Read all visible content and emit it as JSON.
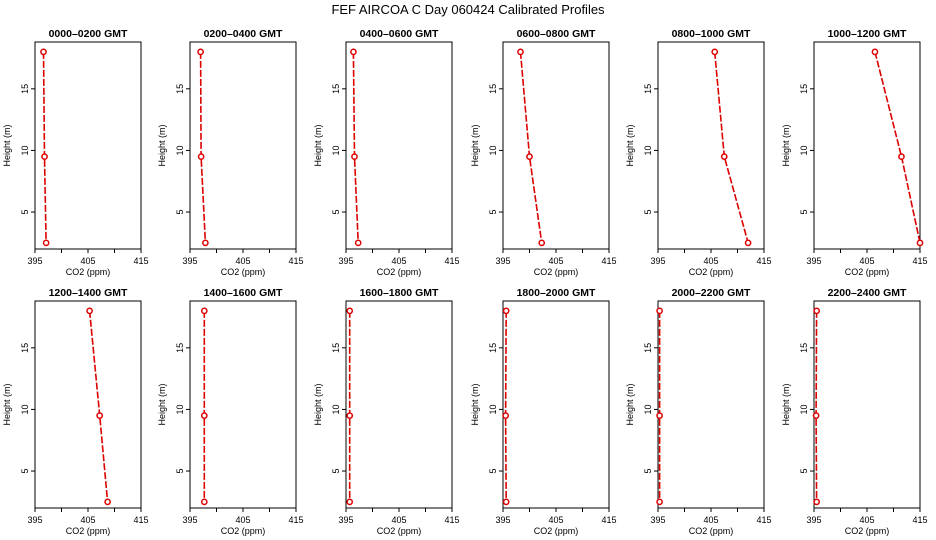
{
  "figure": {
    "title": "FEF AIRCOA C  Day 060424  Calibrated Profiles",
    "series_color": "#dd0000"
  },
  "chart_data": [
    {
      "type": "line",
      "title": "0000–0200 GMT",
      "xlabel": "CO2 (ppm)",
      "ylabel": "Height (m)",
      "xlim": [
        395,
        415
      ],
      "ylim": [
        2,
        18.8
      ],
      "xticks": [
        395,
        400,
        405,
        410,
        415
      ],
      "xtick_labels": [
        "395",
        "",
        "405",
        "",
        "415"
      ],
      "yticks": [
        5,
        10,
        15
      ],
      "x": [
        396.6,
        396.8,
        397.1
      ],
      "y": [
        18.0,
        9.5,
        2.5
      ]
    },
    {
      "type": "line",
      "title": "0200–0400 GMT",
      "xlabel": "CO2 (ppm)",
      "ylabel": "Height (m)",
      "xlim": [
        395,
        415
      ],
      "ylim": [
        2,
        18.8
      ],
      "xticks": [
        395,
        400,
        405,
        410,
        415
      ],
      "xtick_labels": [
        "395",
        "",
        "405",
        "",
        "415"
      ],
      "yticks": [
        5,
        10,
        15
      ],
      "x": [
        397.0,
        397.1,
        397.9
      ],
      "y": [
        18.0,
        9.5,
        2.5
      ]
    },
    {
      "type": "line",
      "title": "0400–0600 GMT",
      "xlabel": "CO2 (ppm)",
      "ylabel": "Height (m)",
      "xlim": [
        395,
        415
      ],
      "ylim": [
        2,
        18.8
      ],
      "xticks": [
        395,
        400,
        405,
        410,
        415
      ],
      "xtick_labels": [
        "395",
        "",
        "405",
        "",
        "415"
      ],
      "yticks": [
        5,
        10,
        15
      ],
      "x": [
        396.4,
        396.6,
        397.3
      ],
      "y": [
        18.0,
        9.5,
        2.5
      ]
    },
    {
      "type": "line",
      "title": "0600–0800 GMT",
      "xlabel": "CO2 (ppm)",
      "ylabel": "Height (m)",
      "xlim": [
        395,
        415
      ],
      "ylim": [
        2,
        18.8
      ],
      "xticks": [
        395,
        400,
        405,
        410,
        415
      ],
      "xtick_labels": [
        "395",
        "",
        "405",
        "",
        "415"
      ],
      "yticks": [
        5,
        10,
        15
      ],
      "x": [
        398.3,
        400.0,
        402.3
      ],
      "y": [
        18.0,
        9.5,
        2.5
      ]
    },
    {
      "type": "line",
      "title": "0800–1000 GMT",
      "xlabel": "CO2 (ppm)",
      "ylabel": "Height (m)",
      "xlim": [
        395,
        415
      ],
      "ylim": [
        2,
        18.8
      ],
      "xticks": [
        395,
        400,
        405,
        410,
        415
      ],
      "xtick_labels": [
        "395",
        "",
        "405",
        "",
        "415"
      ],
      "yticks": [
        5,
        10,
        15
      ],
      "x": [
        405.7,
        407.5,
        412.0
      ],
      "y": [
        18.0,
        9.5,
        2.5
      ]
    },
    {
      "type": "line",
      "title": "1000–1200 GMT",
      "xlabel": "CO2 (ppm)",
      "ylabel": "Height (m)",
      "xlim": [
        395,
        415
      ],
      "ylim": [
        2,
        18.8
      ],
      "xticks": [
        395,
        400,
        405,
        410,
        415
      ],
      "xtick_labels": [
        "395",
        "",
        "405",
        "",
        "415"
      ],
      "yticks": [
        5,
        10,
        15
      ],
      "x": [
        406.5,
        411.5,
        415.0
      ],
      "y": [
        18.0,
        9.5,
        2.5
      ]
    },
    {
      "type": "line",
      "title": "1200–1400 GMT",
      "xlabel": "CO2 (ppm)",
      "ylabel": "Height (m)",
      "xlim": [
        395,
        415
      ],
      "ylim": [
        2,
        18.8
      ],
      "xticks": [
        395,
        400,
        405,
        410,
        415
      ],
      "xtick_labels": [
        "395",
        "",
        "405",
        "",
        "415"
      ],
      "yticks": [
        5,
        10,
        15
      ],
      "x": [
        405.3,
        407.2,
        408.7
      ],
      "y": [
        18.0,
        9.5,
        2.5
      ]
    },
    {
      "type": "line",
      "title": "1400–1600 GMT",
      "xlabel": "CO2 (ppm)",
      "ylabel": "Height (m)",
      "xlim": [
        395,
        415
      ],
      "ylim": [
        2,
        18.8
      ],
      "xticks": [
        395,
        400,
        405,
        410,
        415
      ],
      "xtick_labels": [
        "395",
        "",
        "405",
        "",
        "415"
      ],
      "yticks": [
        5,
        10,
        15
      ],
      "x": [
        397.7,
        397.7,
        397.7
      ],
      "y": [
        18.0,
        9.5,
        2.5
      ]
    },
    {
      "type": "line",
      "title": "1600–1800 GMT",
      "xlabel": "CO2 (ppm)",
      "ylabel": "Height (m)",
      "xlim": [
        395,
        415
      ],
      "ylim": [
        2,
        18.8
      ],
      "xticks": [
        395,
        400,
        405,
        410,
        415
      ],
      "xtick_labels": [
        "395",
        "",
        "405",
        "",
        "415"
      ],
      "yticks": [
        5,
        10,
        15
      ],
      "x": [
        395.7,
        395.7,
        395.7
      ],
      "y": [
        18.0,
        9.5,
        2.5
      ]
    },
    {
      "type": "line",
      "title": "1800–2000 GMT",
      "xlabel": "CO2 (ppm)",
      "ylabel": "Height (m)",
      "xlim": [
        395,
        415
      ],
      "ylim": [
        2,
        18.8
      ],
      "xticks": [
        395,
        400,
        405,
        410,
        415
      ],
      "xtick_labels": [
        "395",
        "",
        "405",
        "",
        "415"
      ],
      "yticks": [
        5,
        10,
        15
      ],
      "x": [
        395.6,
        395.5,
        395.6
      ],
      "y": [
        18.0,
        9.5,
        2.5
      ]
    },
    {
      "type": "line",
      "title": "2000–2200 GMT",
      "xlabel": "CO2 (ppm)",
      "ylabel": "Height (m)",
      "xlim": [
        395,
        415
      ],
      "ylim": [
        2,
        18.8
      ],
      "xticks": [
        395,
        400,
        405,
        410,
        415
      ],
      "xtick_labels": [
        "395",
        "",
        "405",
        "",
        "415"
      ],
      "yticks": [
        5,
        10,
        15
      ],
      "x": [
        395.3,
        395.3,
        395.3
      ],
      "y": [
        18.0,
        9.5,
        2.5
      ]
    },
    {
      "type": "line",
      "title": "2200–2400 GMT",
      "xlabel": "CO2 (ppm)",
      "ylabel": "Height (m)",
      "xlim": [
        395,
        415
      ],
      "ylim": [
        2,
        18.8
      ],
      "xticks": [
        395,
        400,
        405,
        410,
        415
      ],
      "xtick_labels": [
        "395",
        "",
        "405",
        "",
        "415"
      ],
      "yticks": [
        5,
        10,
        15
      ],
      "x": [
        395.5,
        395.4,
        395.5
      ],
      "y": [
        18.0,
        9.5,
        2.5
      ]
    }
  ]
}
